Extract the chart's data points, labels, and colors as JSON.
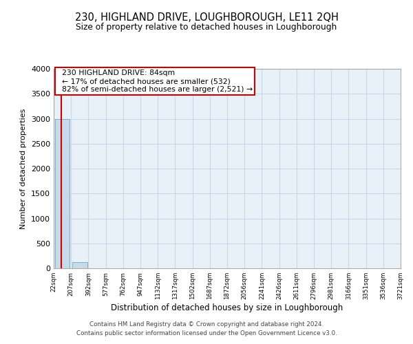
{
  "title": "230, HIGHLAND DRIVE, LOUGHBOROUGH, LE11 2QH",
  "subtitle": "Size of property relative to detached houses in Loughborough",
  "xlabel": "Distribution of detached houses by size in Loughborough",
  "ylabel": "Number of detached properties",
  "bin_labels": [
    "22sqm",
    "207sqm",
    "392sqm",
    "577sqm",
    "762sqm",
    "947sqm",
    "1132sqm",
    "1317sqm",
    "1502sqm",
    "1687sqm",
    "1872sqm",
    "2056sqm",
    "2241sqm",
    "2426sqm",
    "2611sqm",
    "2796sqm",
    "2981sqm",
    "3166sqm",
    "3351sqm",
    "3536sqm",
    "3721sqm"
  ],
  "bar_heights": [
    3000,
    120,
    0,
    0,
    0,
    0,
    0,
    0,
    0,
    0,
    0,
    0,
    0,
    0,
    0,
    0,
    0,
    0,
    0,
    0
  ],
  "bar_color": "#c8d9e8",
  "bar_edge_color": "#7aadcc",
  "ylim": [
    0,
    4000
  ],
  "yticks": [
    0,
    500,
    1000,
    1500,
    2000,
    2500,
    3000,
    3500,
    4000
  ],
  "annotation_title": "230 HIGHLAND DRIVE: 84sqm",
  "annotation_line1": "← 17% of detached houses are smaller (532)",
  "annotation_line2": "82% of semi-detached houses are larger (2,521) →",
  "annotation_box_color": "#ffffff",
  "annotation_box_edge_color": "#cc0000",
  "red_line_color": "#cc0000",
  "grid_color": "#c8d8ea",
  "background_color": "#e8f0f8",
  "footer_line1": "Contains HM Land Registry data © Crown copyright and database right 2024.",
  "footer_line2": "Contains public sector information licensed under the Open Government Licence v3.0."
}
